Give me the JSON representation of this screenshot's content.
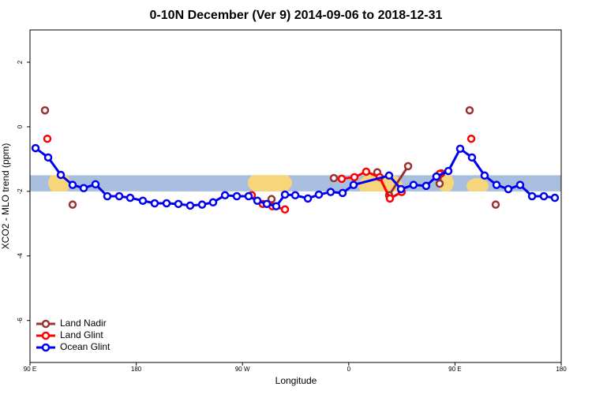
{
  "chart_data": {
    "type": "line",
    "title": "0-10N December (Ver 9)   2014-09-06 to 2018-12-31",
    "x_label": "Longitude",
    "y_label": "XCO2 - MLO trend (ppm)",
    "xlim": [
      90,
      540
    ],
    "ylim": [
      -7.3,
      3
    ],
    "xticks": [
      {
        "value": 90,
        "label": "90 E"
      },
      180,
      {
        "value": 270,
        "label": "90 W"
      },
      {
        "value": 360,
        "label": "0"
      },
      {
        "value": 450,
        "label": "90 E"
      },
      {
        "value": 540,
        "label": "180"
      }
    ],
    "yticks": [
      -6,
      -4,
      -2,
      0,
      2
    ],
    "band": [
      -2,
      -1.5
    ],
    "band_color": "#a9bfe0",
    "legend": "bottom-left",
    "series": [
      {
        "name": "Land Nadir",
        "color": "#993333",
        "x": [
          102.7,
          null,
          126.1,
          null,
          294.6,
          null,
          347.4,
          null,
          384.2,
          null,
          394.2,
          410.3,
          null,
          437.0,
          438.4,
          null,
          462.4,
          null,
          484.5
        ],
        "values": [
          0.51,
          null,
          -2.41,
          null,
          -2.24,
          null,
          -1.59,
          null,
          -1.41,
          null,
          -2.12,
          -1.22,
          null,
          -1.76,
          -1.44,
          null,
          0.51,
          null,
          -2.41
        ]
      },
      {
        "name": "Land Glint",
        "color": "#ff0000",
        "x": [
          104.7,
          null,
          277.9,
          287.2,
          295.3,
          306.0,
          null,
          354.1,
          364.8,
          374.8,
          386.2,
          394.9,
          404.9,
          null,
          437.0,
          null,
          463.8
        ],
        "values": [
          -0.37,
          null,
          -2.12,
          -2.39,
          -2.46,
          -2.56,
          null,
          -1.61,
          -1.56,
          -1.39,
          -1.56,
          -2.22,
          -2.02,
          null,
          -1.46,
          null,
          -0.37
        ]
      },
      {
        "name": "Ocean Glint",
        "color": "#0000ee",
        "x": [
          94.7,
          105.4,
          116.1,
          126.1,
          135.5,
          145.5,
          155.5,
          165.6,
          174.9,
          185.6,
          195.6,
          205.7,
          215.7,
          225.7,
          235.8,
          245.1,
          255.2,
          265.2,
          275.2,
          282.6,
          290.6,
          298.6,
          306.0,
          314.7,
          325.4,
          334.7,
          344.7,
          354.8,
          364.1,
          394.2,
          404.3,
          414.9,
          425.6,
          434.3,
          444.4,
          454.4,
          464.4,
          475.1,
          485.2,
          495.2,
          505.2,
          515.3,
          525.3,
          534.6
        ],
        "values": [
          -0.66,
          -0.95,
          -1.49,
          -1.8,
          -1.9,
          -1.78,
          -2.15,
          -2.15,
          -2.2,
          -2.29,
          -2.37,
          -2.37,
          -2.39,
          -2.44,
          -2.41,
          -2.34,
          -2.12,
          -2.15,
          -2.15,
          -2.29,
          -2.39,
          -2.46,
          -2.1,
          -2.12,
          -2.22,
          -2.1,
          -2.02,
          -2.05,
          -1.8,
          -1.51,
          -1.93,
          -1.8,
          -1.83,
          -1.54,
          -1.37,
          -0.68,
          -0.95,
          -1.51,
          -1.8,
          -1.93,
          -1.8,
          -2.15,
          -2.15,
          -2.2
        ]
      }
    ]
  }
}
